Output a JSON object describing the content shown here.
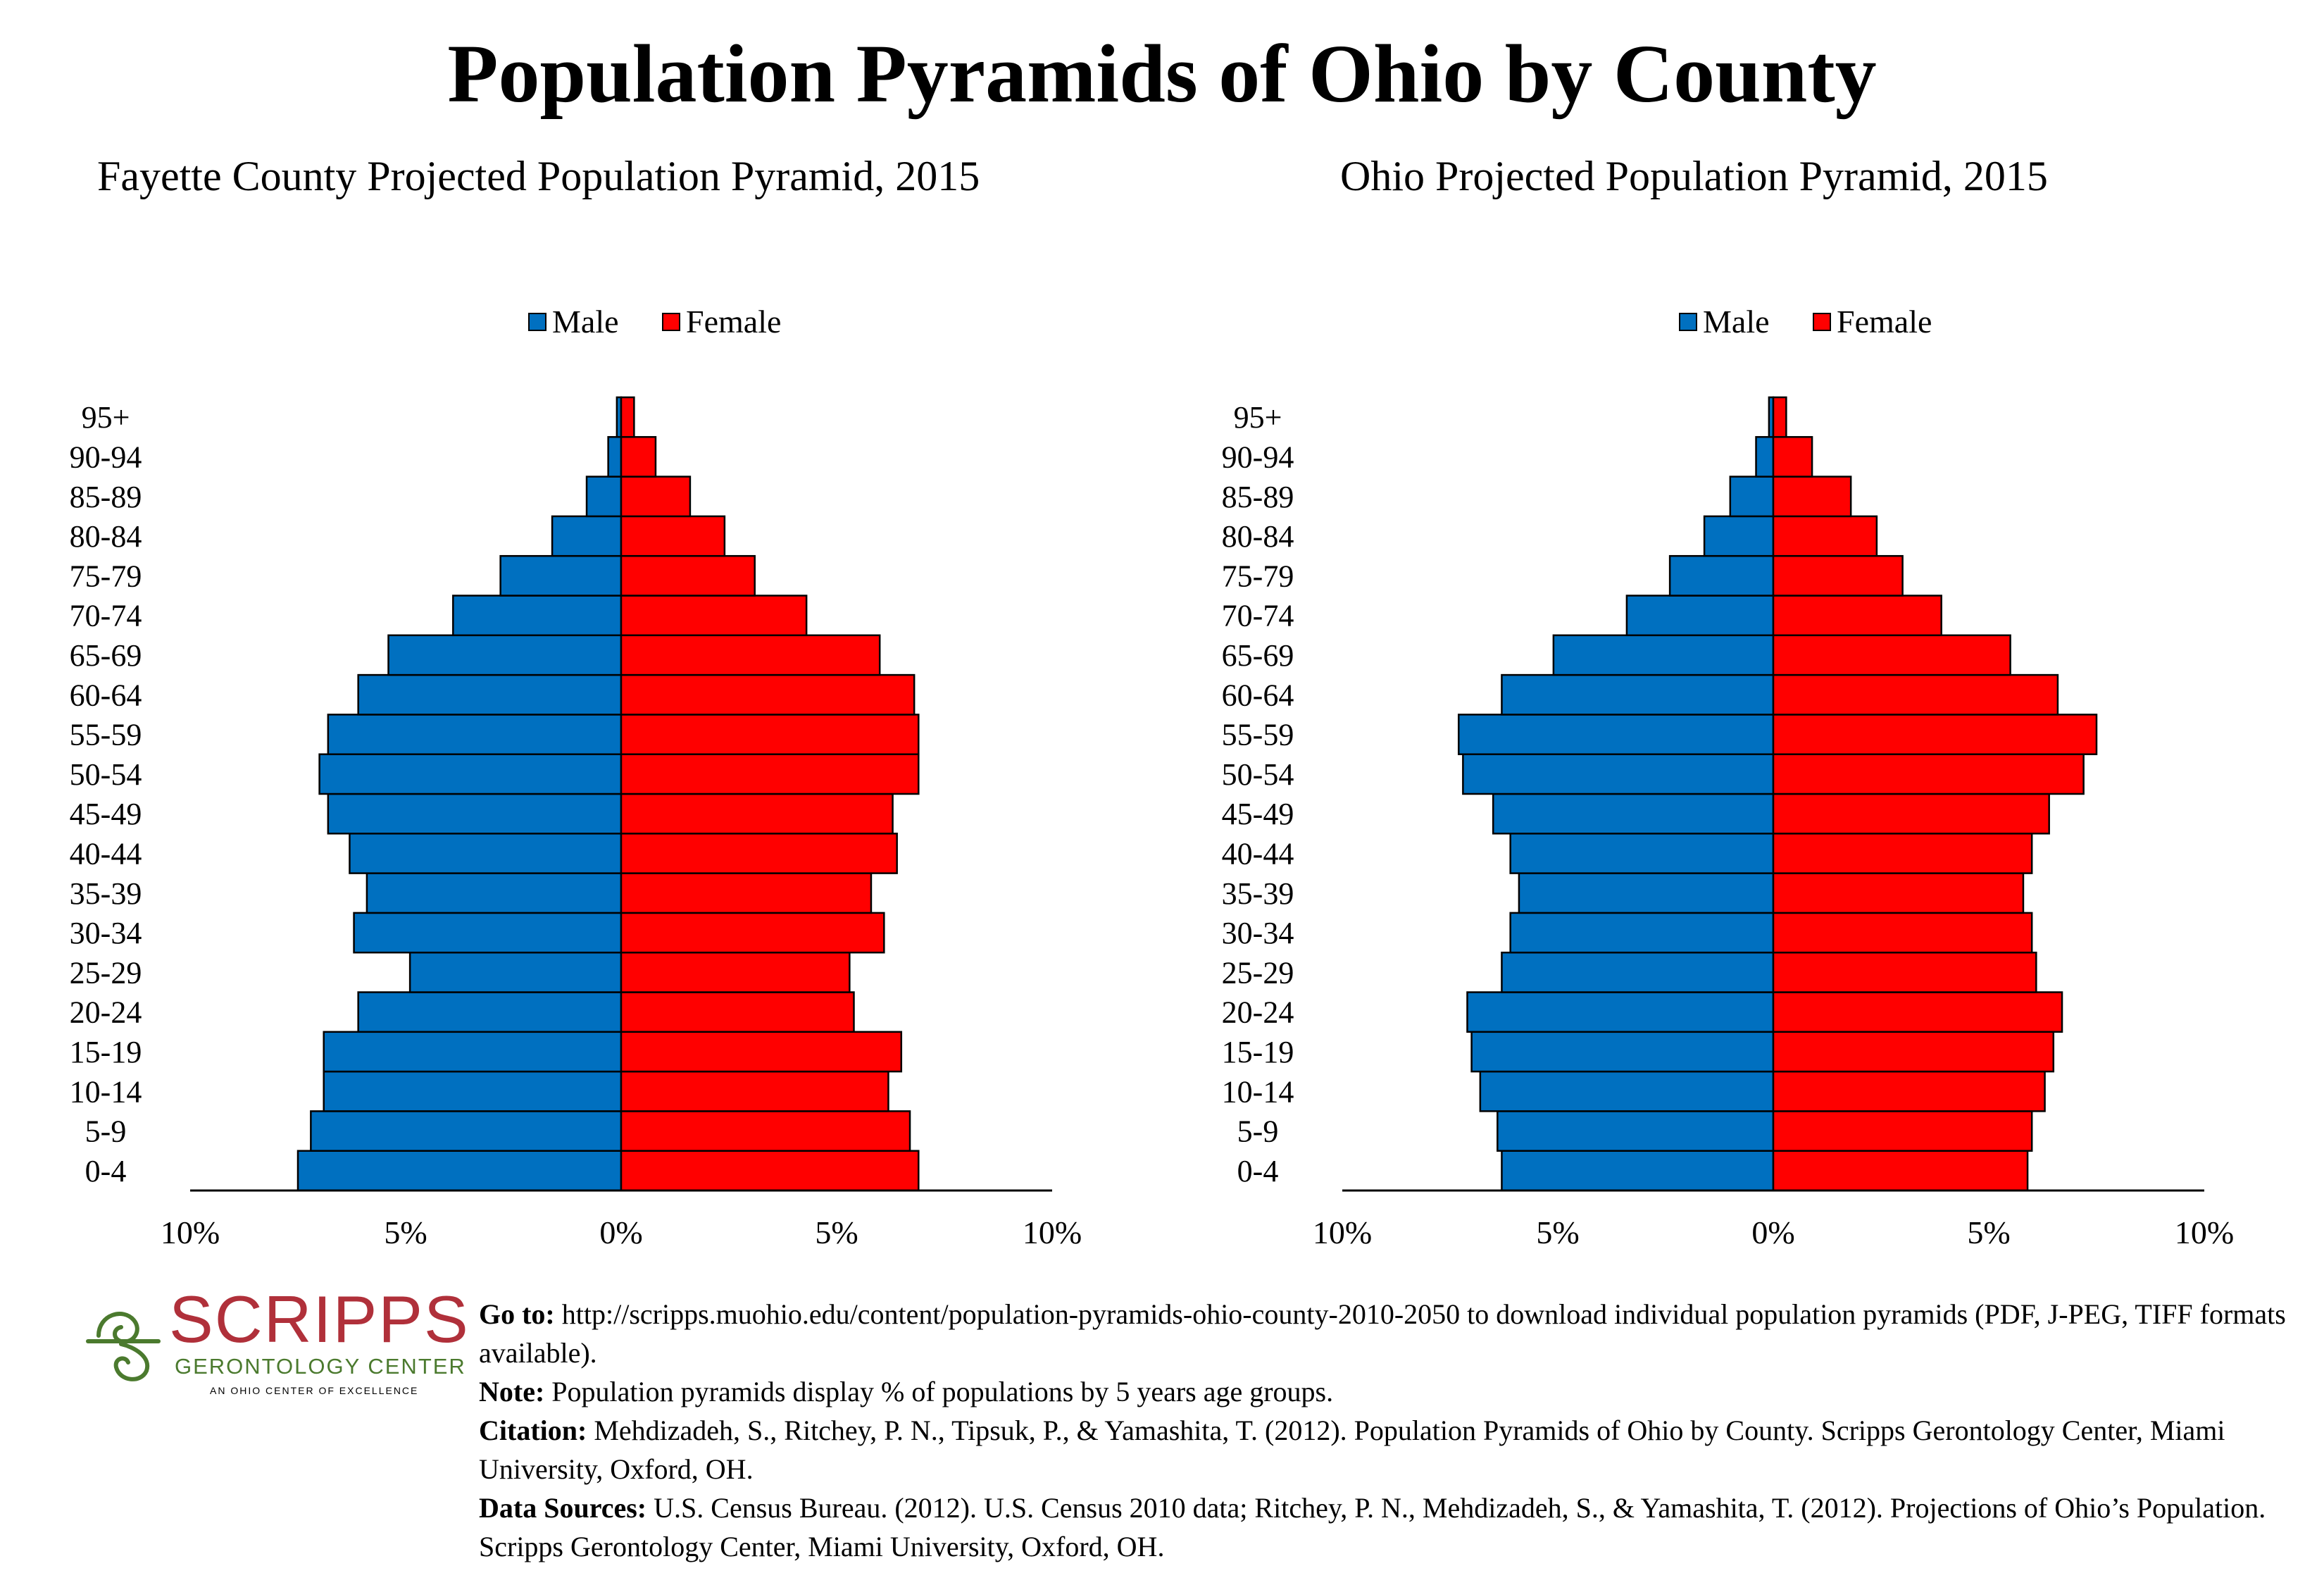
{
  "title": "Population Pyramids of Ohio by County",
  "legend": {
    "male": "Male",
    "female": "Female"
  },
  "colors": {
    "male": "#0070c0",
    "female": "#ff0000",
    "outline": "#000000",
    "logo_red": "#b0303a",
    "logo_green": "#4b7a2e"
  },
  "chart_data": [
    {
      "type": "bar",
      "orientation": "horizontal-pyramid",
      "title": "Fayette County Projected Population Pyramid, 2015",
      "categories": [
        "0-4",
        "5-9",
        "10-14",
        "15-19",
        "20-24",
        "25-29",
        "30-34",
        "35-39",
        "40-44",
        "45-49",
        "50-54",
        "55-59",
        "60-64",
        "65-69",
        "70-74",
        "75-79",
        "80-84",
        "85-89",
        "90-94",
        "95+"
      ],
      "series": [
        {
          "name": "Male",
          "values": [
            7.5,
            7.2,
            6.9,
            6.9,
            6.1,
            4.9,
            6.2,
            5.9,
            6.3,
            6.8,
            7.0,
            6.8,
            6.1,
            5.4,
            3.9,
            2.8,
            1.6,
            0.8,
            0.3,
            0.1
          ]
        },
        {
          "name": "Female",
          "values": [
            6.9,
            6.7,
            6.2,
            6.5,
            5.4,
            5.3,
            6.1,
            5.8,
            6.4,
            6.3,
            6.9,
            6.9,
            6.8,
            6.0,
            4.3,
            3.1,
            2.4,
            1.6,
            0.8,
            0.3
          ]
        }
      ],
      "xlim": [
        -10,
        10
      ],
      "xticks": [
        "10%",
        "5%",
        "0%",
        "5%",
        "10%"
      ],
      "legend_position": "top-center"
    },
    {
      "type": "bar",
      "orientation": "horizontal-pyramid",
      "title": "Ohio Projected Population Pyramid, 2015",
      "categories": [
        "0-4",
        "5-9",
        "10-14",
        "15-19",
        "20-24",
        "25-29",
        "30-34",
        "35-39",
        "40-44",
        "45-49",
        "50-54",
        "55-59",
        "60-64",
        "65-69",
        "70-74",
        "75-79",
        "80-84",
        "85-89",
        "90-94",
        "95+"
      ],
      "series": [
        {
          "name": "Male",
          "values": [
            6.3,
            6.4,
            6.8,
            7.0,
            7.1,
            6.3,
            6.1,
            5.9,
            6.1,
            6.5,
            7.2,
            7.3,
            6.3,
            5.1,
            3.4,
            2.4,
            1.6,
            1.0,
            0.4,
            0.1
          ]
        },
        {
          "name": "Female",
          "values": [
            5.9,
            6.0,
            6.3,
            6.5,
            6.7,
            6.1,
            6.0,
            5.8,
            6.0,
            6.4,
            7.2,
            7.5,
            6.6,
            5.5,
            3.9,
            3.0,
            2.4,
            1.8,
            0.9,
            0.3
          ]
        }
      ],
      "xlim": [
        -10,
        10
      ],
      "xticks": [
        "10%",
        "5%",
        "0%",
        "5%",
        "10%"
      ],
      "legend_position": "top-center"
    }
  ],
  "logo": {
    "word": "SCRIPPS",
    "subtitle": "GERONTOLOGY CENTER",
    "tagline": "AN OHIO CENTER OF EXCELLENCE"
  },
  "footer": {
    "goto_label": "Go to:",
    "goto_text": "http://scripps.muohio.edu/content/population-pyramids-ohio-county-2010-2050 to download individual population pyramids (PDF, J-PEG, TIFF formats available).",
    "note_label": "Note:",
    "note_text": "Population pyramids display % of populations by 5 years age groups.",
    "citation_label": "Citation:",
    "citation_text": "Mehdizadeh, S., Ritchey, P. N., Tipsuk, P., & Yamashita, T. (2012). Population Pyramids of Ohio by County. Scripps Gerontology Center, Miami University, Oxford, OH.",
    "sources_label": "Data Sources:",
    "sources_text": "U.S. Census Bureau. (2012). U.S. Census 2010 data; Ritchey, P. N., Mehdizadeh, S., & Yamashita, T. (2012). Projections of Ohio’s Population. Scripps Gerontology Center, Miami University, Oxford, OH."
  }
}
